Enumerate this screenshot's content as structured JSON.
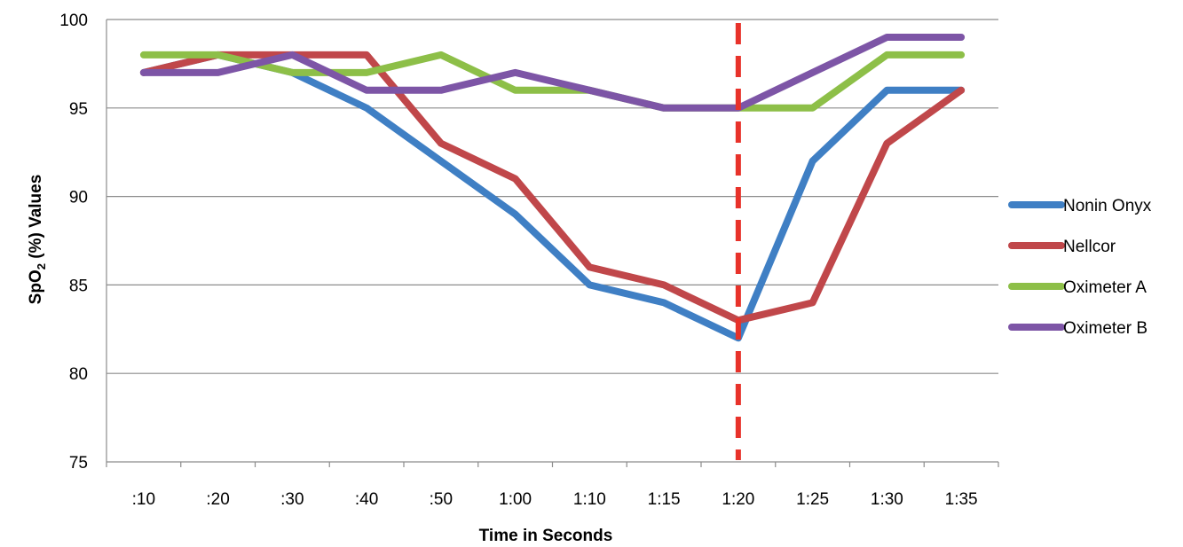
{
  "chart_data": {
    "type": "line",
    "title": "",
    "xlabel": "Time in Seconds",
    "ylabel_main": "SpO",
    "ylabel_sub": "2",
    "ylabel_rest": " (%) Values",
    "categories": [
      ":10",
      ":20",
      ":30",
      ":40",
      ":50",
      "1:00",
      "1:10",
      "1:15",
      "1:20",
      "1:25",
      "1:30",
      "1:35"
    ],
    "ylim": [
      75,
      100
    ],
    "yticks": [
      75,
      80,
      85,
      90,
      95,
      100
    ],
    "grid": true,
    "legend_position": "right",
    "series": [
      {
        "name": "Nonin Onyx",
        "color": "#3f7fc4",
        "values": [
          97,
          98,
          97,
          95,
          92,
          89,
          85,
          84,
          82,
          92,
          96,
          96
        ]
      },
      {
        "name": "Nellcor",
        "color": "#c0474a",
        "values": [
          97,
          98,
          98,
          98,
          93,
          91,
          86,
          85,
          83,
          84,
          93,
          96
        ]
      },
      {
        "name": "Oximeter A",
        "color": "#8dbf48",
        "values": [
          98,
          98,
          97,
          97,
          98,
          96,
          96,
          95,
          95,
          95,
          98,
          98
        ]
      },
      {
        "name": "Oximeter B",
        "color": "#7d55a6",
        "values": [
          97,
          97,
          98,
          96,
          96,
          97,
          96,
          95,
          95,
          97,
          99,
          99
        ]
      }
    ],
    "annotation": {
      "type": "vertical-dashed-line",
      "at_category": "1:20",
      "color": "#e8322a"
    }
  }
}
